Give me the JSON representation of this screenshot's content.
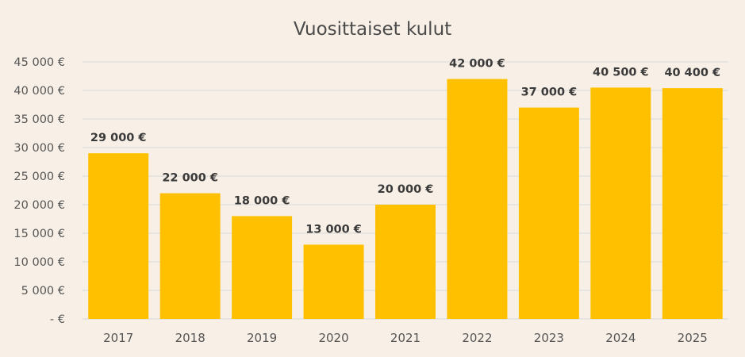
{
  "chart_data": {
    "type": "bar",
    "title": "Vuosittaiset kulut",
    "categories": [
      "2017",
      "2018",
      "2019",
      "2020",
      "2021",
      "2022",
      "2023",
      "2024",
      "2025"
    ],
    "values": [
      29000,
      22000,
      18000,
      13000,
      20000,
      42000,
      37000,
      40500,
      40400
    ],
    "data_labels": [
      "29 000 €",
      "22 000 €",
      "18 000 €",
      "13 000 €",
      "20 000 €",
      "42 000 €",
      "37 000 €",
      "40 500 €",
      "40 400 €"
    ],
    "ylim": [
      0,
      45000
    ],
    "yticks": [
      0,
      5000,
      10000,
      15000,
      20000,
      25000,
      30000,
      35000,
      40000,
      45000
    ],
    "ytick_labels": [
      "-  €",
      "5 000 €",
      "10 000 €",
      "15 000 €",
      "20 000 €",
      "25 000 €",
      "30 000 €",
      "35 000 €",
      "40 000 €",
      "45 000 €"
    ],
    "xlabel": "",
    "ylabel": "",
    "grid": true,
    "legend": "none",
    "colors": {
      "bar": "#ffc000",
      "background": "#f8f0e6",
      "grid": "#d9d9d9"
    }
  }
}
